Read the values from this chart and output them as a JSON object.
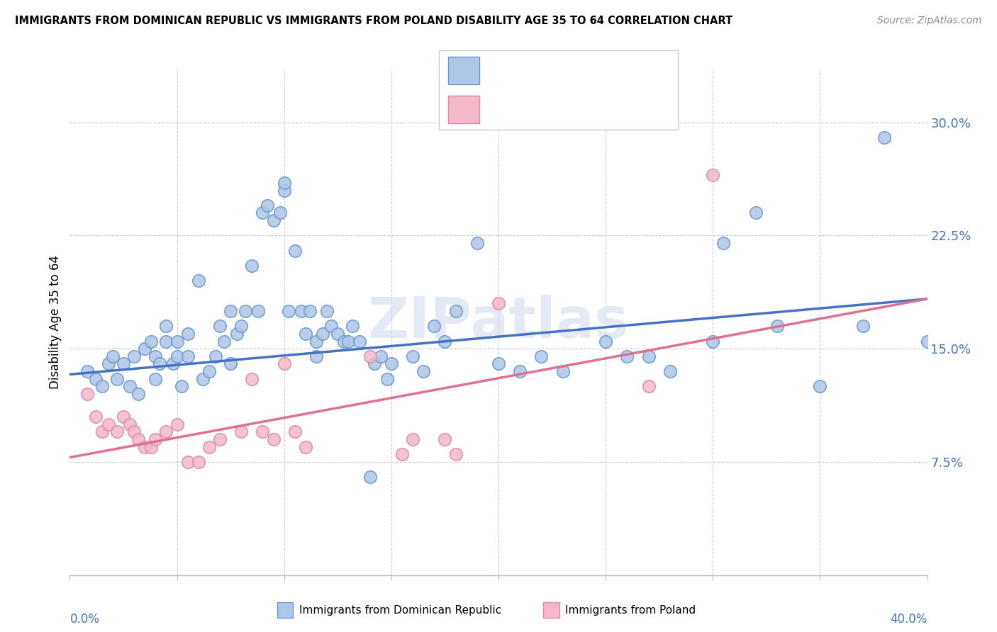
{
  "title": "IMMIGRANTS FROM DOMINICAN REPUBLIC VS IMMIGRANTS FROM POLAND DISABILITY AGE 35 TO 64 CORRELATION CHART",
  "source": "Source: ZipAtlas.com",
  "ylabel": "Disability Age 35 to 64",
  "yticks": [
    0.075,
    0.15,
    0.225,
    0.3
  ],
  "ytick_labels": [
    "7.5%",
    "15.0%",
    "22.5%",
    "30.0%"
  ],
  "xrange": [
    0.0,
    0.4
  ],
  "yrange": [
    0.0,
    0.335
  ],
  "color_blue_fill": "#aec6e8",
  "color_blue_edge": "#6699cc",
  "color_pink_fill": "#f4b8c8",
  "color_pink_edge": "#dd88aa",
  "color_blue_line": "#4472c4",
  "color_pink_line": "#e07090",
  "color_text_blue": "#4472c4",
  "watermark": "ZIPatlas",
  "blue_scatter": [
    [
      0.008,
      0.135
    ],
    [
      0.012,
      0.13
    ],
    [
      0.015,
      0.125
    ],
    [
      0.018,
      0.14
    ],
    [
      0.02,
      0.145
    ],
    [
      0.022,
      0.13
    ],
    [
      0.025,
      0.14
    ],
    [
      0.028,
      0.125
    ],
    [
      0.03,
      0.145
    ],
    [
      0.032,
      0.12
    ],
    [
      0.035,
      0.15
    ],
    [
      0.038,
      0.155
    ],
    [
      0.04,
      0.13
    ],
    [
      0.04,
      0.145
    ],
    [
      0.042,
      0.14
    ],
    [
      0.045,
      0.165
    ],
    [
      0.045,
      0.155
    ],
    [
      0.048,
      0.14
    ],
    [
      0.05,
      0.155
    ],
    [
      0.05,
      0.145
    ],
    [
      0.052,
      0.125
    ],
    [
      0.055,
      0.16
    ],
    [
      0.055,
      0.145
    ],
    [
      0.06,
      0.195
    ],
    [
      0.062,
      0.13
    ],
    [
      0.065,
      0.135
    ],
    [
      0.068,
      0.145
    ],
    [
      0.07,
      0.165
    ],
    [
      0.072,
      0.155
    ],
    [
      0.075,
      0.14
    ],
    [
      0.075,
      0.175
    ],
    [
      0.078,
      0.16
    ],
    [
      0.08,
      0.165
    ],
    [
      0.082,
      0.175
    ],
    [
      0.085,
      0.205
    ],
    [
      0.088,
      0.175
    ],
    [
      0.09,
      0.24
    ],
    [
      0.092,
      0.245
    ],
    [
      0.095,
      0.235
    ],
    [
      0.098,
      0.24
    ],
    [
      0.1,
      0.255
    ],
    [
      0.1,
      0.26
    ],
    [
      0.102,
      0.175
    ],
    [
      0.105,
      0.215
    ],
    [
      0.108,
      0.175
    ],
    [
      0.11,
      0.16
    ],
    [
      0.112,
      0.175
    ],
    [
      0.115,
      0.155
    ],
    [
      0.115,
      0.145
    ],
    [
      0.118,
      0.16
    ],
    [
      0.12,
      0.175
    ],
    [
      0.122,
      0.165
    ],
    [
      0.125,
      0.16
    ],
    [
      0.128,
      0.155
    ],
    [
      0.13,
      0.155
    ],
    [
      0.132,
      0.165
    ],
    [
      0.135,
      0.155
    ],
    [
      0.14,
      0.065
    ],
    [
      0.142,
      0.14
    ],
    [
      0.145,
      0.145
    ],
    [
      0.148,
      0.13
    ],
    [
      0.15,
      0.14
    ],
    [
      0.16,
      0.145
    ],
    [
      0.165,
      0.135
    ],
    [
      0.17,
      0.165
    ],
    [
      0.175,
      0.155
    ],
    [
      0.18,
      0.175
    ],
    [
      0.19,
      0.22
    ],
    [
      0.2,
      0.14
    ],
    [
      0.21,
      0.135
    ],
    [
      0.22,
      0.145
    ],
    [
      0.23,
      0.135
    ],
    [
      0.25,
      0.155
    ],
    [
      0.26,
      0.145
    ],
    [
      0.27,
      0.145
    ],
    [
      0.28,
      0.135
    ],
    [
      0.3,
      0.155
    ],
    [
      0.305,
      0.22
    ],
    [
      0.32,
      0.24
    ],
    [
      0.33,
      0.165
    ],
    [
      0.35,
      0.125
    ],
    [
      0.37,
      0.165
    ],
    [
      0.38,
      0.29
    ],
    [
      0.4,
      0.155
    ]
  ],
  "pink_scatter": [
    [
      0.008,
      0.12
    ],
    [
      0.012,
      0.105
    ],
    [
      0.015,
      0.095
    ],
    [
      0.018,
      0.1
    ],
    [
      0.022,
      0.095
    ],
    [
      0.025,
      0.105
    ],
    [
      0.028,
      0.1
    ],
    [
      0.03,
      0.095
    ],
    [
      0.032,
      0.09
    ],
    [
      0.035,
      0.085
    ],
    [
      0.038,
      0.085
    ],
    [
      0.04,
      0.09
    ],
    [
      0.045,
      0.095
    ],
    [
      0.05,
      0.1
    ],
    [
      0.055,
      0.075
    ],
    [
      0.06,
      0.075
    ],
    [
      0.065,
      0.085
    ],
    [
      0.07,
      0.09
    ],
    [
      0.08,
      0.095
    ],
    [
      0.085,
      0.13
    ],
    [
      0.09,
      0.095
    ],
    [
      0.095,
      0.09
    ],
    [
      0.1,
      0.14
    ],
    [
      0.105,
      0.095
    ],
    [
      0.11,
      0.085
    ],
    [
      0.14,
      0.145
    ],
    [
      0.155,
      0.08
    ],
    [
      0.16,
      0.09
    ],
    [
      0.175,
      0.09
    ],
    [
      0.18,
      0.08
    ],
    [
      0.2,
      0.18
    ],
    [
      0.27,
      0.125
    ],
    [
      0.3,
      0.265
    ]
  ],
  "blue_trendline": [
    [
      0.0,
      0.133
    ],
    [
      0.4,
      0.183
    ]
  ],
  "pink_trendline": [
    [
      0.0,
      0.078
    ],
    [
      0.4,
      0.183
    ]
  ]
}
